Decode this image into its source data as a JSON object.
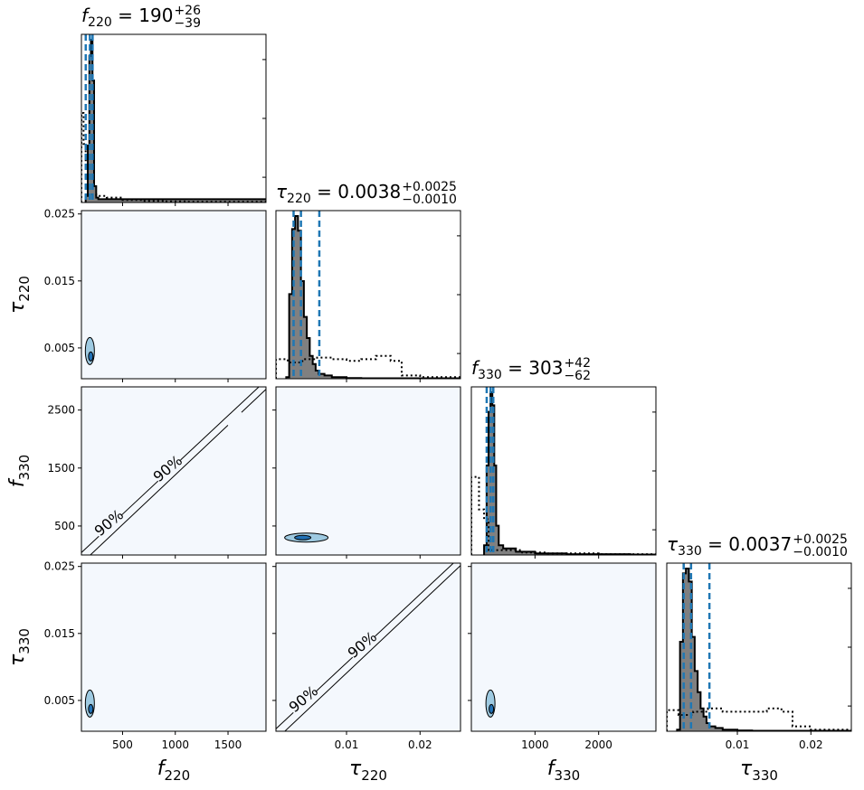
{
  "chart_data": {
    "type": "corner",
    "parameters": [
      {
        "symbol": "f",
        "sub": "220",
        "label": "f",
        "range": [
          110,
          1860
        ],
        "ticks": [
          500,
          1000,
          1500
        ],
        "tick_labels": [
          "500",
          "1000",
          "1500"
        ],
        "title": {
          "name_symbol": "f",
          "name_sub": "220",
          "value": "190",
          "plus": "+26",
          "minus": "−39"
        },
        "quantiles": [
          151,
          190,
          216
        ]
      },
      {
        "symbol": "τ",
        "sub": "220",
        "label": "τ",
        "range": [
          0.0004,
          0.0255
        ],
        "ticks": [
          0.01,
          0.02
        ],
        "tick_labels": [
          "0.01",
          "0.02"
        ],
        "ticks_y": [
          0.005,
          0.015,
          0.025
        ],
        "tick_labels_y": [
          "0.005",
          "0.015",
          "0.025"
        ],
        "title": {
          "name_symbol": "τ",
          "name_sub": "220",
          "value": "0.0038",
          "plus": "+0.0025",
          "minus": "−0.0010"
        },
        "quantiles": [
          0.0028,
          0.0038,
          0.0063
        ]
      },
      {
        "symbol": "f",
        "sub": "330",
        "label": "f",
        "range": [
          0,
          2900
        ],
        "ticks": [
          1000,
          2000
        ],
        "tick_labels": [
          "1000",
          "2000"
        ],
        "ticks_y": [
          500,
          1500,
          2500
        ],
        "tick_labels_y": [
          "500",
          "1500",
          "2500"
        ],
        "title": {
          "name_symbol": "f",
          "name_sub": "330",
          "value": "303",
          "plus": "+42",
          "minus": "−62"
        },
        "quantiles": [
          241,
          303,
          345
        ]
      },
      {
        "symbol": "τ",
        "sub": "330",
        "label": "τ",
        "range": [
          0.0004,
          0.0255
        ],
        "ticks": [
          0.01,
          0.02
        ],
        "tick_labels": [
          "0.01",
          "0.02"
        ],
        "ticks_y": [
          0.005,
          0.015,
          0.025
        ],
        "tick_labels_y": [
          "0.005",
          "0.015",
          "0.025"
        ],
        "title": {
          "name_symbol": "τ",
          "name_sub": "330",
          "value": "0.0037",
          "plus": "+0.0025",
          "minus": "−0.0010"
        },
        "quantiles": [
          0.0027,
          0.0037,
          0.0062
        ]
      }
    ],
    "histograms": [
      {
        "posterior": [
          [
            150,
            0.04
          ],
          [
            170,
            0.35
          ],
          [
            185,
            0.9
          ],
          [
            200,
            1.0
          ],
          [
            215,
            0.75
          ],
          [
            230,
            0.1
          ],
          [
            250,
            0.03
          ],
          [
            270,
            0.02
          ]
        ],
        "prior": [
          [
            110,
            0.55
          ],
          [
            130,
            0.36
          ],
          [
            150,
            0.26
          ],
          [
            170,
            0.05
          ],
          [
            250,
            0.04
          ],
          [
            350,
            0.03
          ],
          [
            500,
            0.015
          ],
          [
            700,
            0.01
          ],
          [
            900,
            0.006
          ],
          [
            1100,
            0.004
          ],
          [
            1860,
            0.004
          ]
        ]
      },
      {
        "posterior": [
          [
            0.0018,
            0.01
          ],
          [
            0.0022,
            0.52
          ],
          [
            0.0026,
            0.92
          ],
          [
            0.003,
            1.0
          ],
          [
            0.0034,
            0.91
          ],
          [
            0.0038,
            0.6
          ],
          [
            0.0042,
            0.38
          ],
          [
            0.0046,
            0.25
          ],
          [
            0.005,
            0.14
          ],
          [
            0.0054,
            0.09
          ],
          [
            0.0058,
            0.05
          ],
          [
            0.0062,
            0.03
          ],
          [
            0.007,
            0.02
          ],
          [
            0.008,
            0.01
          ],
          [
            0.01,
            0.004
          ],
          [
            0.012,
            0.003
          ]
        ],
        "prior": [
          [
            0.0004,
            0.12
          ],
          [
            0.002,
            0.1
          ],
          [
            0.004,
            0.12
          ],
          [
            0.006,
            0.13
          ],
          [
            0.008,
            0.12
          ],
          [
            0.01,
            0.11
          ],
          [
            0.012,
            0.12
          ],
          [
            0.014,
            0.14
          ],
          [
            0.016,
            0.11
          ],
          [
            0.0175,
            0.02
          ],
          [
            0.02,
            0.01
          ],
          [
            0.0255,
            0.01
          ]
        ]
      },
      {
        "posterior": [
          [
            200,
            0.06
          ],
          [
            240,
            0.55
          ],
          [
            270,
            0.88
          ],
          [
            300,
            1.0
          ],
          [
            330,
            0.92
          ],
          [
            360,
            0.55
          ],
          [
            390,
            0.18
          ],
          [
            430,
            0.06
          ],
          [
            500,
            0.04
          ],
          [
            700,
            0.02
          ],
          [
            1000,
            0.01
          ],
          [
            1500,
            0.005
          ],
          [
            2500,
            0.003
          ]
        ],
        "prior": [
          [
            0,
            0.48
          ],
          [
            120,
            0.28
          ],
          [
            200,
            0.22
          ],
          [
            270,
            0.03
          ],
          [
            500,
            0.03
          ],
          [
            800,
            0.015
          ],
          [
            1200,
            0.01
          ],
          [
            2000,
            0.005
          ],
          [
            2900,
            0.004
          ]
        ]
      },
      {
        "posterior": [
          [
            0.0018,
            0.01
          ],
          [
            0.0022,
            0.55
          ],
          [
            0.0026,
            0.97
          ],
          [
            0.003,
            1.0
          ],
          [
            0.0034,
            0.92
          ],
          [
            0.0038,
            0.58
          ],
          [
            0.0042,
            0.37
          ],
          [
            0.0046,
            0.24
          ],
          [
            0.005,
            0.14
          ],
          [
            0.0054,
            0.09
          ],
          [
            0.0058,
            0.05
          ],
          [
            0.0062,
            0.03
          ],
          [
            0.007,
            0.02
          ],
          [
            0.008,
            0.01
          ],
          [
            0.01,
            0.005
          ],
          [
            0.012,
            0.003
          ]
        ],
        "prior": [
          [
            0.0004,
            0.13
          ],
          [
            0.002,
            0.1
          ],
          [
            0.004,
            0.12
          ],
          [
            0.006,
            0.14
          ],
          [
            0.008,
            0.12
          ],
          [
            0.01,
            0.12
          ],
          [
            0.012,
            0.12
          ],
          [
            0.014,
            0.14
          ],
          [
            0.016,
            0.12
          ],
          [
            0.0175,
            0.03
          ],
          [
            0.02,
            0.01
          ],
          [
            0.0255,
            0.01
          ]
        ]
      }
    ],
    "contour_label": "90%",
    "colors": {
      "posterior_fill": "#808080",
      "quantile_line": "#1f77b4",
      "panel_bg": "#f4f8fd",
      "contour_fill": "#9ecae1",
      "contour_dark": "#2171b5"
    }
  }
}
